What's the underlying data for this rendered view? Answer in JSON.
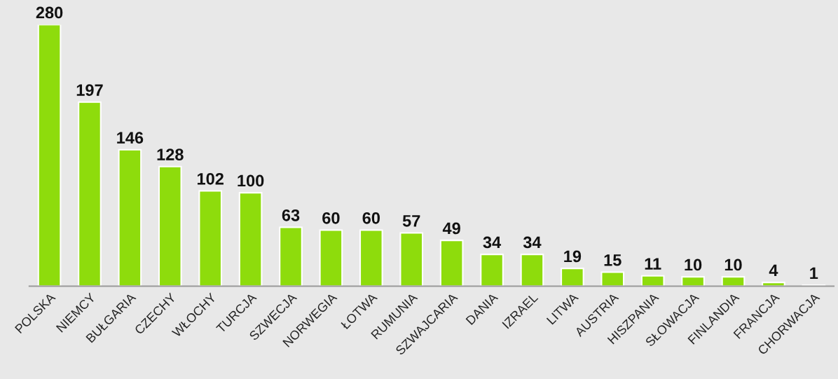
{
  "chart_data": {
    "type": "bar",
    "categories": [
      "POLSKA",
      "NIEMCY",
      "BUŁGARIA",
      "CZECHY",
      "WŁOCHY",
      "TURCJA",
      "SZWECJA",
      "NORWEGIA",
      "ŁOTWA",
      "RUMUNIA",
      "SZWAJCARIA",
      "DANIA",
      "IZRAEL",
      "LITWA",
      "AUSTRIA",
      "HISZPANIA",
      "SŁOWACJA",
      "FINLANDIA",
      "FRANCJA",
      "CHORWACJA"
    ],
    "values": [
      280,
      197,
      146,
      128,
      102,
      100,
      63,
      60,
      60,
      57,
      49,
      34,
      34,
      19,
      15,
      11,
      10,
      10,
      4,
      1
    ],
    "color": "#8edc0c",
    "data_labels": true,
    "grid": false,
    "legend": false
  }
}
